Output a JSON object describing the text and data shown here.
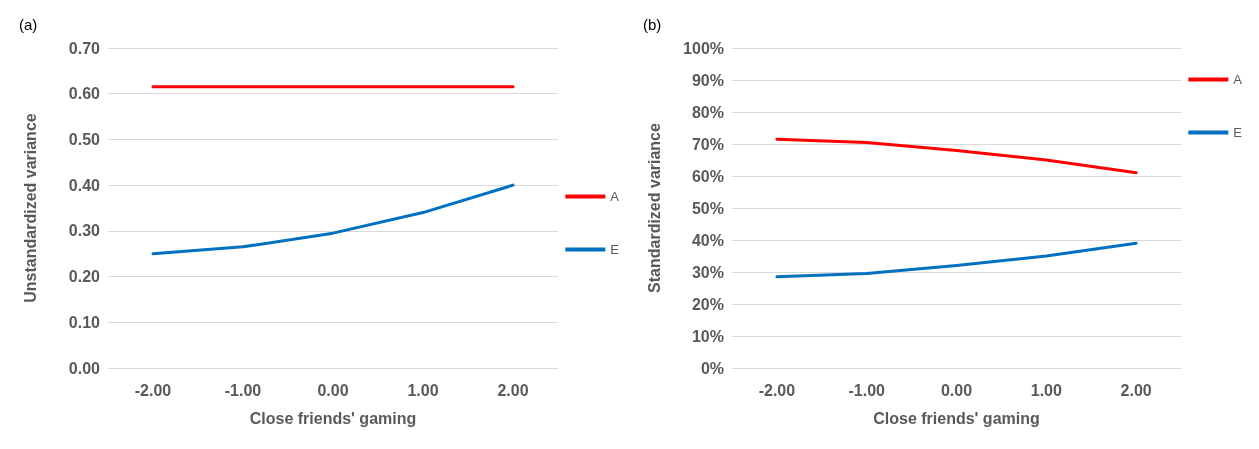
{
  "chart_data": [
    {
      "type": "line",
      "title": "(a)",
      "xlabel": "Close friends' gaming",
      "ylabel": "Unstandardized variance",
      "categories": [
        "-2.00",
        "-1.00",
        "0.00",
        "1.00",
        "2.00"
      ],
      "series": [
        {
          "name": "A",
          "color": "#ff0000",
          "values": [
            0.615,
            0.615,
            0.615,
            0.615,
            0.615
          ]
        },
        {
          "name": "E",
          "color": "#0070c0",
          "values": [
            0.25,
            0.265,
            0.295,
            0.34,
            0.4
          ]
        }
      ],
      "ylim": [
        0,
        0.7
      ],
      "yticks": [
        {
          "value": 0,
          "label": "0.00"
        },
        {
          "value": 0.1,
          "label": "0.10"
        },
        {
          "value": 0.2,
          "label": "0.20"
        },
        {
          "value": 0.3,
          "label": "0.30"
        },
        {
          "value": 0.4,
          "label": "0.40"
        },
        {
          "value": 0.5,
          "label": "0.50"
        },
        {
          "value": 0.6,
          "label": "0.60"
        },
        {
          "value": 0.7,
          "label": "0.70"
        }
      ],
      "grid": "y",
      "legend": "right",
      "marker": "none",
      "line_style": "solid"
    },
    {
      "type": "line",
      "title": "(b)",
      "xlabel": "Close friends' gaming",
      "ylabel": "Standardized variance",
      "categories": [
        "-2.00",
        "-1.00",
        "0.00",
        "1.00",
        "2.00"
      ],
      "series": [
        {
          "name": "A",
          "color": "#ff0000",
          "values": [
            71.5,
            70.5,
            68,
            65,
            61
          ]
        },
        {
          "name": "E",
          "color": "#0070c0",
          "values": [
            28.5,
            29.5,
            32,
            35,
            39
          ]
        }
      ],
      "ylim": [
        0,
        100
      ],
      "yticks": [
        {
          "value": 0,
          "label": "0%"
        },
        {
          "value": 10,
          "label": "10%"
        },
        {
          "value": 20,
          "label": "20%"
        },
        {
          "value": 30,
          "label": "30%"
        },
        {
          "value": 40,
          "label": "40%"
        },
        {
          "value": 50,
          "label": "50%"
        },
        {
          "value": 60,
          "label": "60%"
        },
        {
          "value": 70,
          "label": "70%"
        },
        {
          "value": 80,
          "label": "80%"
        },
        {
          "value": 90,
          "label": "90%"
        },
        {
          "value": 100,
          "label": "100%"
        }
      ],
      "grid": "y",
      "legend": "top right",
      "marker": "none",
      "line_style": "solid"
    }
  ]
}
